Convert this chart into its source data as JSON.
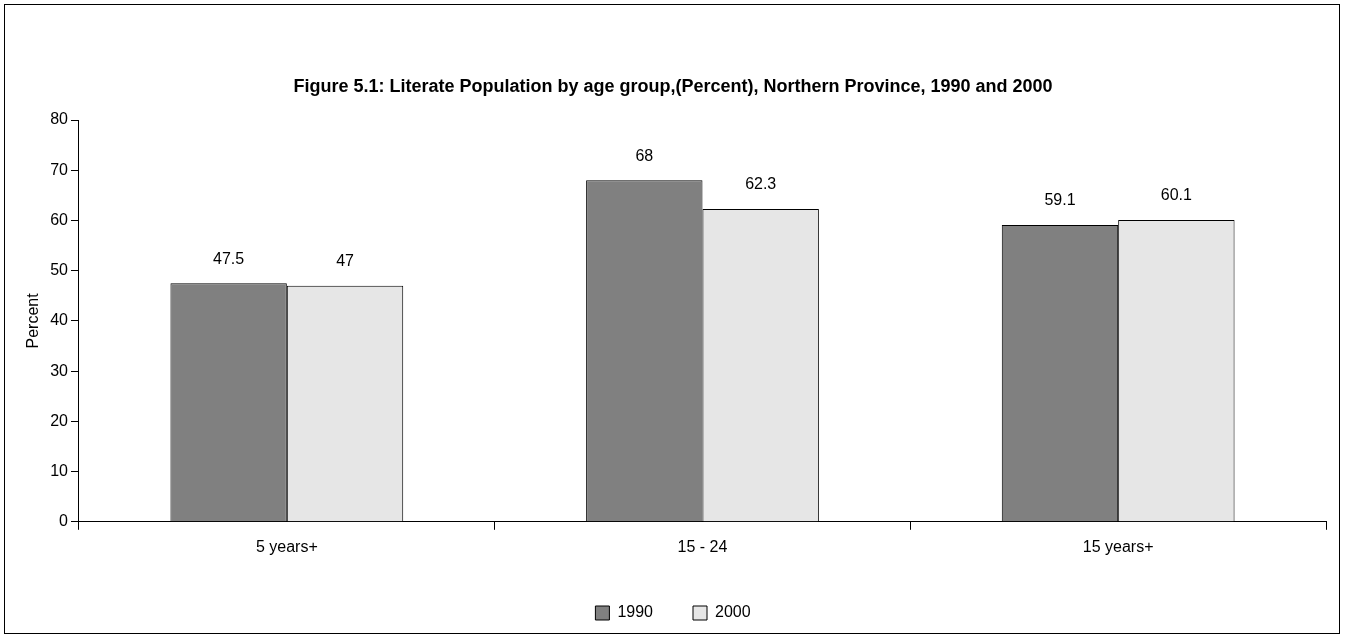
{
  "chart_data": {
    "type": "bar",
    "title": "Figure 5.1: Literate Population by age group,(Percent), Northern Province, 1990 and 2000",
    "ylabel": "Percent",
    "categories": [
      "5 years+",
      "15 - 24",
      "15 years+"
    ],
    "series": [
      {
        "name": "1990",
        "color": "#808080",
        "values": [
          47.5,
          68,
          59.1
        ]
      },
      {
        "name": "2000",
        "color": "#e6e6e6",
        "values": [
          47,
          62.3,
          60.1
        ]
      }
    ],
    "ylim": [
      0,
      80
    ],
    "yticks": [
      0,
      10,
      20,
      30,
      40,
      50,
      60,
      70,
      80
    ],
    "grid": false,
    "legend": "bottom",
    "data_labels": true
  }
}
